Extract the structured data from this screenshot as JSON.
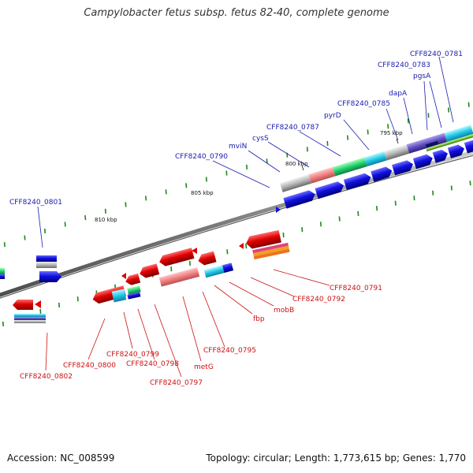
{
  "title": "Campylobacter fetus subsp. fetus 82-40, complete genome",
  "footer": {
    "accession": "Accession: NC_008599",
    "stats": "Topology: circular; Length: 1,773,615 bp; Genes: 1,770"
  },
  "colors": {
    "background": "#ffffff",
    "backbone": "#8a8a8a",
    "forward_label": "#1a1ab0",
    "reverse_label": "#cc1111",
    "forward_gene": "#1010e0",
    "reverse_gene": "#e00000",
    "tick": "#1a8a1a"
  },
  "ticks": [
    "795 kbp",
    "800 kbp",
    "805 kbp",
    "810 kbp"
  ],
  "forward_labels": [
    "CFF8240_0781",
    "CFF8240_0783",
    "pgsA",
    "dapA",
    "CFF8240_0785",
    "pyrD",
    "CFF8240_0787",
    "cysS",
    "mviN",
    "CFF8240_0790",
    "CFF8240_0801"
  ],
  "reverse_labels": [
    "CFF8240_0791",
    "CFF8240_0792",
    "mobB",
    "fbp",
    "CFF8240_0795",
    "metG",
    "CFF8240_0797",
    "CFF8240_0798",
    "CFF8240_0799",
    "CFF8240_0800",
    "CFF8240_0802"
  ]
}
